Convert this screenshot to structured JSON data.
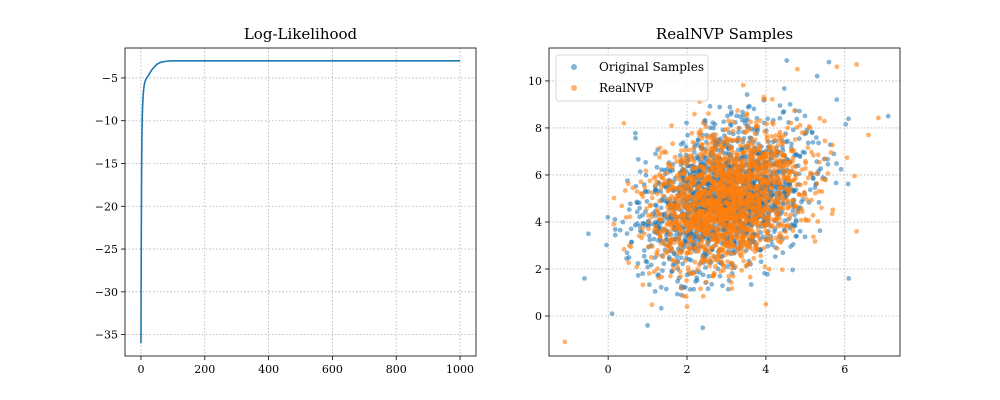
{
  "chart_data": [
    {
      "type": "line",
      "title": "Log-Likelihood",
      "xlabel": "",
      "ylabel": "",
      "xlim": [
        -50,
        1050
      ],
      "ylim": [
        -37.5,
        -1.5
      ],
      "xticks": [
        0,
        200,
        400,
        600,
        800,
        1000
      ],
      "yticks": [
        -35,
        -30,
        -25,
        -20,
        -15,
        -10,
        -5
      ],
      "grid": true,
      "series": [
        {
          "color": "#1f77b4",
          "x": [
            0,
            1,
            2,
            3,
            4,
            5,
            6,
            8,
            10,
            12,
            15,
            18,
            20,
            25,
            30,
            35,
            40,
            45,
            50,
            60,
            70,
            80,
            100,
            150,
            200,
            300,
            400,
            500,
            600,
            700,
            800,
            900,
            1000
          ],
          "y": [
            -36.0,
            -24.0,
            -16.0,
            -12.0,
            -9.8,
            -8.5,
            -7.6,
            -6.5,
            -5.9,
            -5.5,
            -5.2,
            -5.0,
            -4.9,
            -4.6,
            -4.3,
            -4.0,
            -3.8,
            -3.6,
            -3.4,
            -3.2,
            -3.1,
            -3.05,
            -3.0,
            -3.0,
            -3.0,
            -3.0,
            -3.0,
            -3.0,
            -3.0,
            -3.0,
            -3.0,
            -3.0,
            -3.0
          ]
        }
      ]
    },
    {
      "type": "scatter",
      "title": "RealNVP Samples",
      "xlabel": "",
      "ylabel": "",
      "xlim": [
        -1.5,
        7.4
      ],
      "ylim": [
        -1.7,
        11.4
      ],
      "xticks": [
        0,
        2,
        4,
        6
      ],
      "yticks": [
        0,
        2,
        4,
        6,
        8,
        10
      ],
      "grid": true,
      "legend": "upper-left",
      "series": [
        {
          "name": "Original Samples",
          "color": "#1f77b4",
          "alpha": 0.55,
          "mean": [
            3.0,
            5.0
          ],
          "std": [
            1.0,
            1.5
          ],
          "rho": 0.3,
          "n": 1800,
          "seed": 11,
          "outliers": [
            [
              5.6,
              10.8
            ],
            [
              7.1,
              8.5
            ],
            [
              -0.5,
              3.5
            ],
            [
              1.0,
              -0.4
            ],
            [
              2.4,
              -0.5
            ],
            [
              0.1,
              0.1
            ],
            [
              6.1,
              1.6
            ],
            [
              -0.6,
              1.6
            ],
            [
              5.3,
              10.2
            ]
          ]
        },
        {
          "name": "RealNVP",
          "color": "#ff7f0e",
          "alpha": 0.6,
          "mean": [
            3.0,
            5.0
          ],
          "std": [
            0.95,
            1.45
          ],
          "rho": 0.3,
          "n": 1800,
          "seed": 29,
          "outliers": [
            [
              -1.1,
              -1.1
            ],
            [
              6.3,
              10.7
            ],
            [
              5.8,
              10.6
            ],
            [
              6.6,
              7.7
            ],
            [
              4.0,
              0.5
            ],
            [
              6.3,
              3.6
            ],
            [
              0.4,
              8.2
            ],
            [
              2.0,
              0.4
            ],
            [
              4.8,
              10.5
            ]
          ]
        }
      ]
    }
  ]
}
